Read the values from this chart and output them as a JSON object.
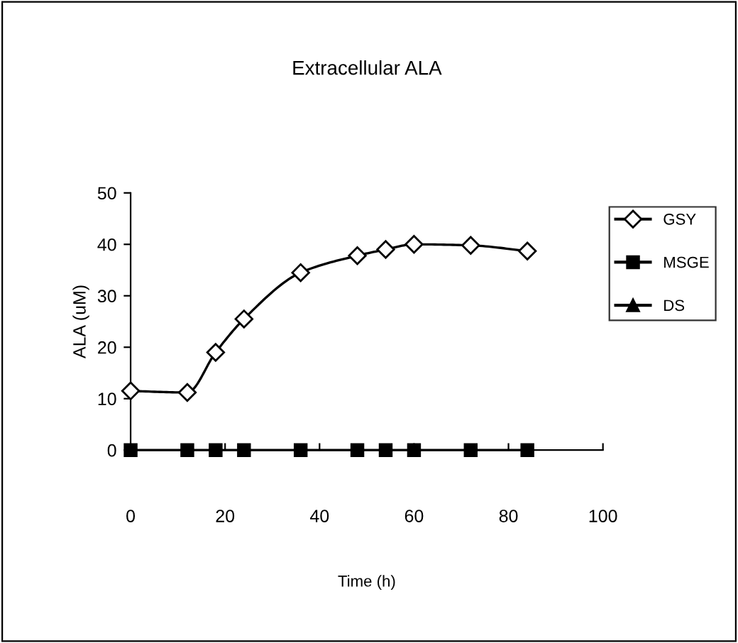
{
  "chart_data": {
    "type": "line",
    "title": "Extracellular ALA",
    "xlabel": "Time (h)",
    "ylabel": "ALA (uM)",
    "x": [
      0,
      12,
      18,
      24,
      36,
      48,
      54,
      60,
      72,
      84
    ],
    "series": [
      {
        "name": "GSY",
        "color": "#000000",
        "marker": "diamond",
        "values": [
          11.5,
          11.2,
          19,
          25.5,
          34.5,
          37.8,
          39,
          40,
          39.8,
          38.7
        ]
      },
      {
        "name": "MSGE",
        "color": "#000000",
        "marker": "square",
        "values": [
          0,
          0,
          0,
          0,
          0,
          0,
          0,
          0,
          0,
          0
        ]
      },
      {
        "name": "DS",
        "color": "#000000",
        "marker": "triangle",
        "values": [
          null,
          null,
          null,
          null,
          null,
          null,
          null,
          null,
          null,
          null
        ]
      }
    ],
    "xlim": [
      0,
      100
    ],
    "xticks": [
      0,
      20,
      40,
      60,
      80,
      100
    ],
    "ylim": [
      0,
      50
    ],
    "yticks": [
      0,
      10,
      20,
      30,
      40,
      50
    ],
    "grid": false,
    "legend": "right",
    "line_style": "solid"
  }
}
